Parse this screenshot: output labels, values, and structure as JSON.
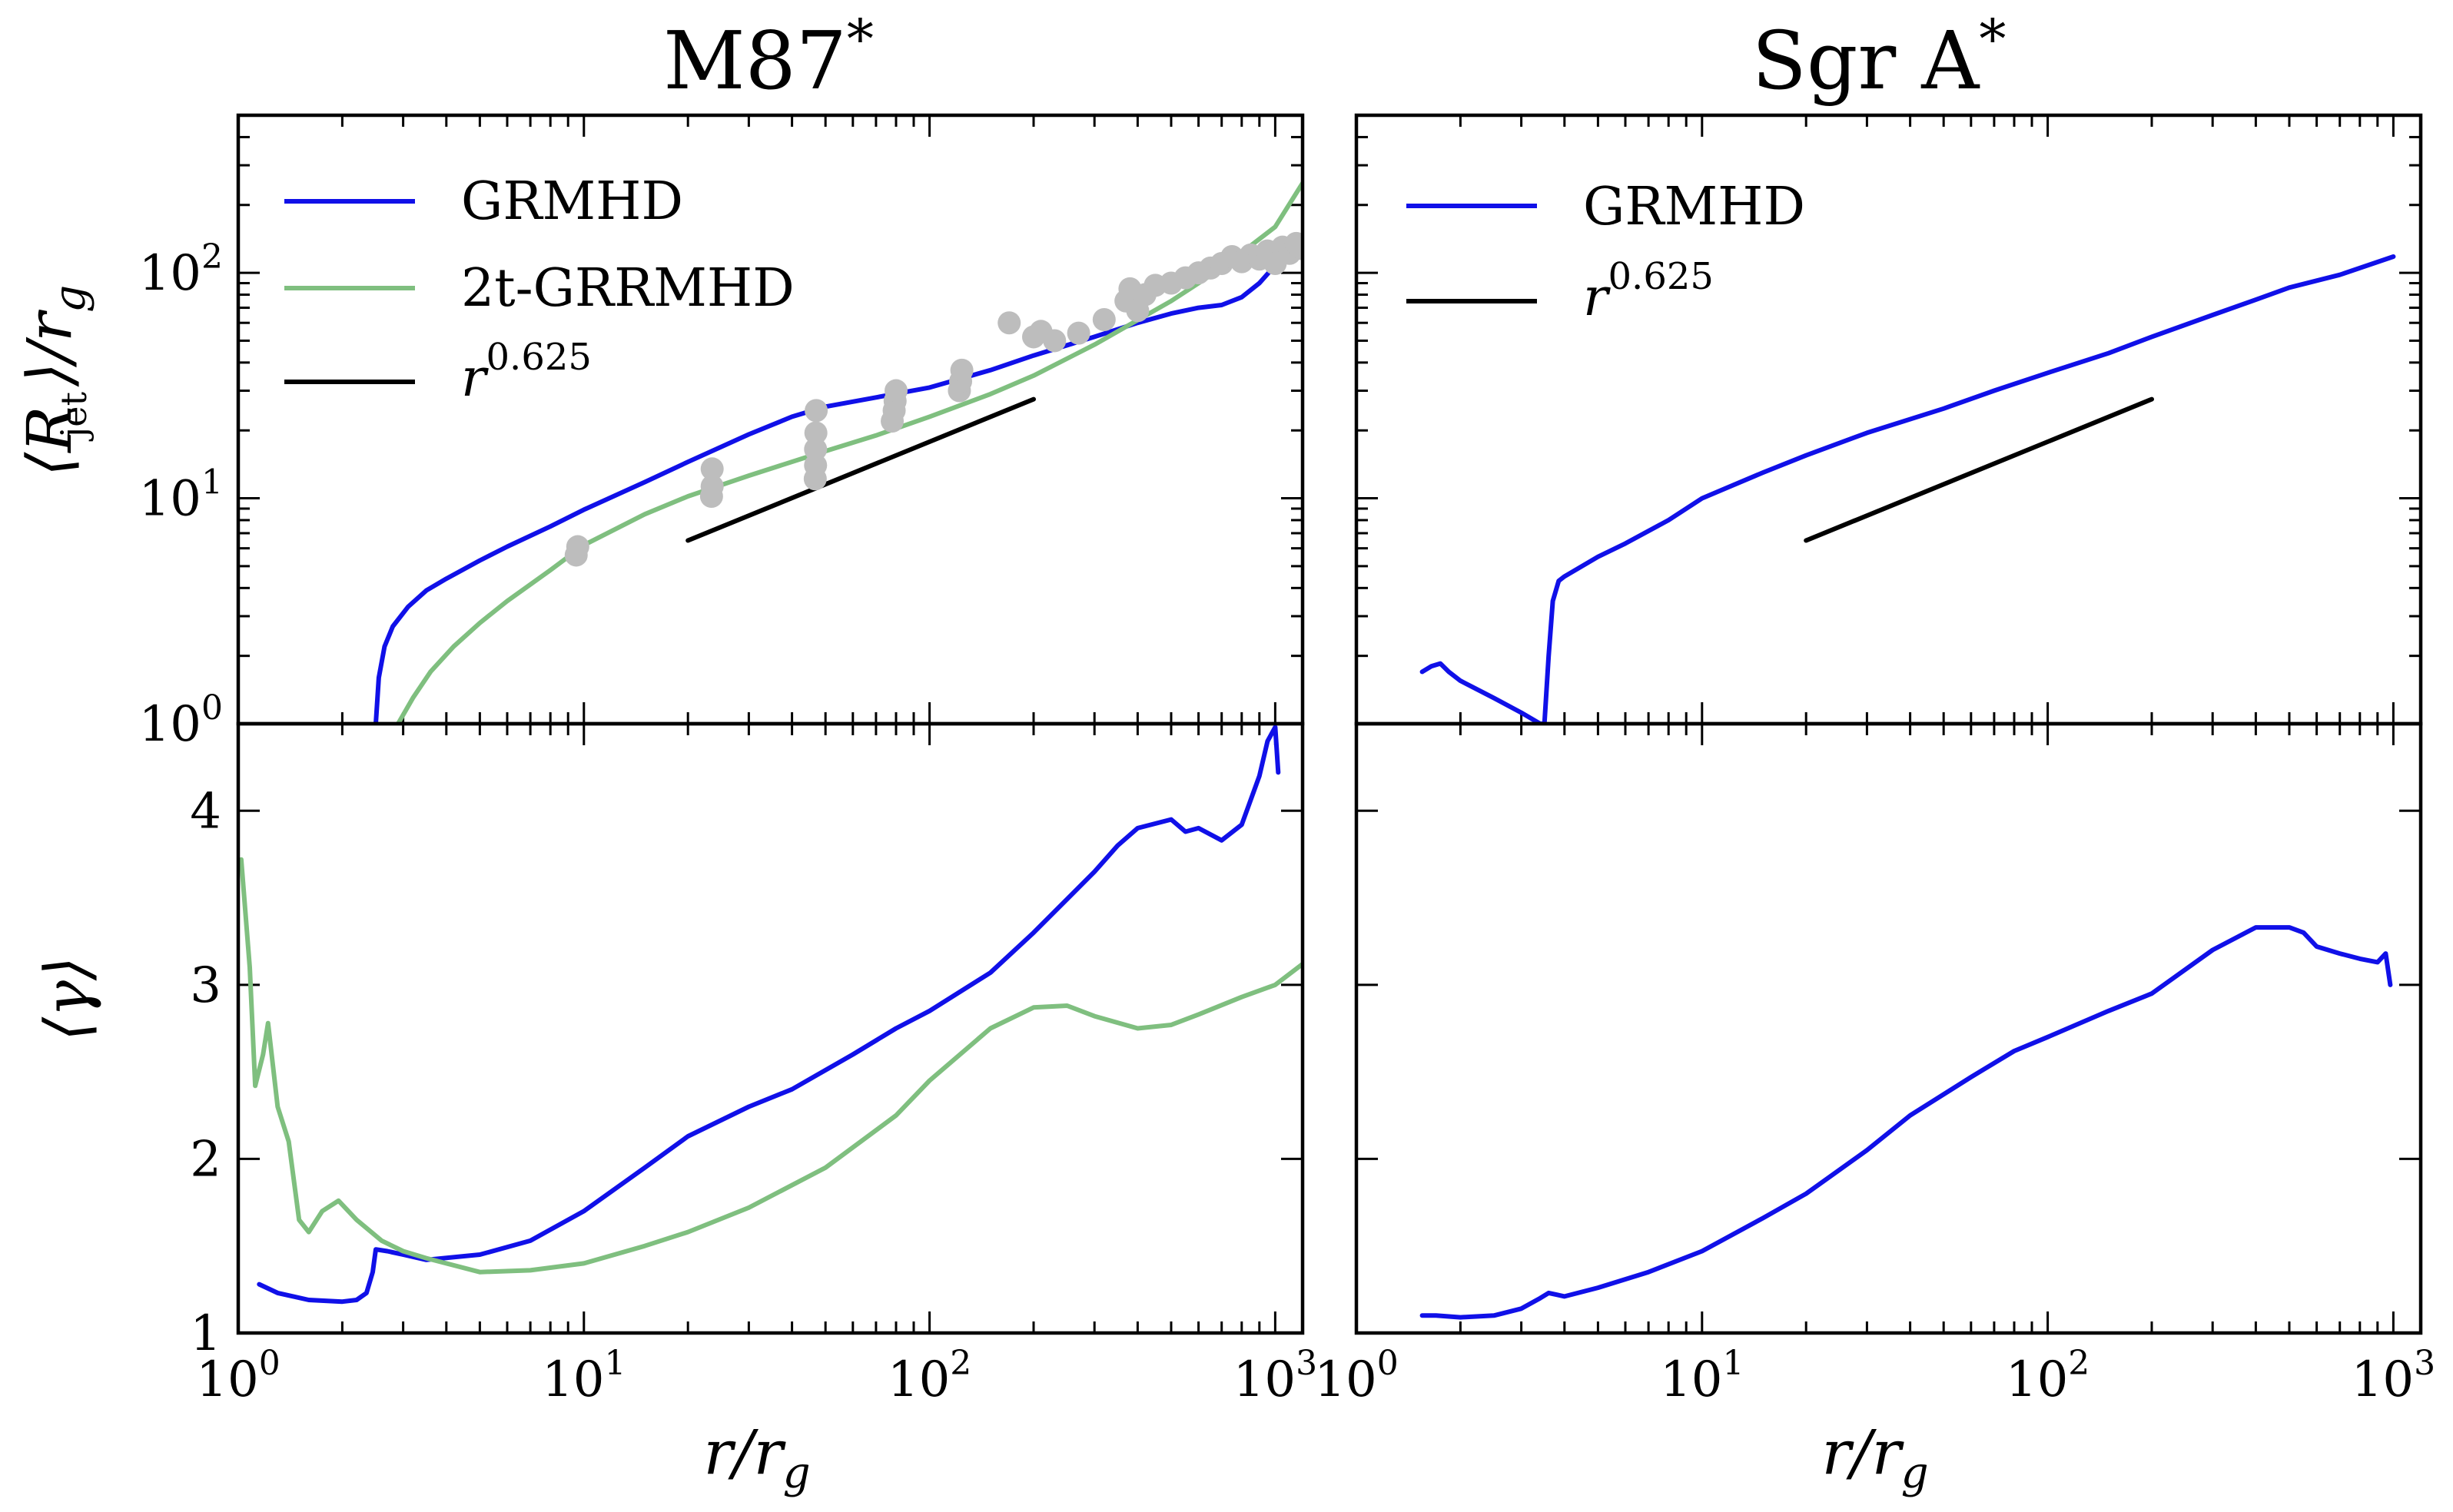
{
  "panels": {
    "left_title": "M87",
    "right_title": "Sgr A",
    "title_sup": "*"
  },
  "axes": {
    "xlabel": "r/r",
    "xlabel_sub": "g",
    "ylabel_top": "⟨R    ⟩/r",
    "ylabel_top_sub1": "jet",
    "ylabel_top_sub2": "g",
    "ylabel_bottom": "⟨γ⟩"
  },
  "legend": {
    "grmhd": "GRMHD",
    "twotemp": "2t-GRRMHD",
    "powerlaw_base": "r",
    "powerlaw_exp": "0.625"
  },
  "colors": {
    "grmhd": "#1010e8",
    "twotemp": "#7fbf7f",
    "powerlaw": "#000000",
    "observations": "#bdbdbd"
  },
  "ticks": {
    "x": [
      {
        "base": "10",
        "exp": "0"
      },
      {
        "base": "10",
        "exp": "1"
      },
      {
        "base": "10",
        "exp": "2"
      },
      {
        "base": "10",
        "exp": "3"
      }
    ],
    "y_top": [
      {
        "base": "10",
        "exp": "0"
      },
      {
        "base": "10",
        "exp": "1"
      },
      {
        "base": "10",
        "exp": "2"
      }
    ],
    "y_bottom": [
      "1",
      "2",
      "3",
      "4"
    ]
  },
  "chart_data": [
    {
      "type": "line",
      "panel": "M87* jet radius",
      "title": "M87",
      "xlabel": "r/r_g",
      "ylabel": "⟨R_jet⟩/r_g",
      "xscale": "log",
      "yscale": "log",
      "xlim": [
        1,
        1200
      ],
      "ylim": [
        1,
        500
      ],
      "legend": "top-left",
      "series": [
        {
          "name": "GRMHD",
          "color": "#1010e8",
          "points": [
            [
              2.5,
              1.0
            ],
            [
              2.55,
              1.6
            ],
            [
              2.65,
              2.2
            ],
            [
              2.8,
              2.7
            ],
            [
              3.1,
              3.3
            ],
            [
              3.5,
              3.9
            ],
            [
              4,
              4.4
            ],
            [
              5,
              5.3
            ],
            [
              6,
              6.1
            ],
            [
              8,
              7.5
            ],
            [
              10,
              8.9
            ],
            [
              15,
              11.8
            ],
            [
              20,
              14.5
            ],
            [
              30,
              19.2
            ],
            [
              40,
              23
            ],
            [
              50,
              25.5
            ],
            [
              70,
              28
            ],
            [
              100,
              31
            ],
            [
              150,
              37
            ],
            [
              200,
              43
            ],
            [
              300,
              52
            ],
            [
              400,
              60
            ],
            [
              500,
              66
            ],
            [
              600,
              70
            ],
            [
              700,
              72
            ],
            [
              800,
              78
            ],
            [
              900,
              90
            ],
            [
              1000,
              108
            ]
          ]
        },
        {
          "name": "2t-GRRMHD",
          "color": "#7fbf7f",
          "points": [
            [
              2.9,
              1.0
            ],
            [
              3.2,
              1.3
            ],
            [
              3.6,
              1.7
            ],
            [
              4.2,
              2.2
            ],
            [
              5,
              2.8
            ],
            [
              6,
              3.5
            ],
            [
              8,
              4.8
            ],
            [
              10,
              6.2
            ],
            [
              15,
              8.5
            ],
            [
              20,
              10.2
            ],
            [
              30,
              12.6
            ],
            [
              50,
              16.2
            ],
            [
              70,
              19
            ],
            [
              100,
              23
            ],
            [
              150,
              29
            ],
            [
              200,
              35
            ],
            [
              300,
              48
            ],
            [
              500,
              75
            ],
            [
              700,
              105
            ],
            [
              1000,
              160
            ],
            [
              1200,
              250
            ]
          ]
        },
        {
          "name": "r^0.625",
          "color": "#000000",
          "points": [
            [
              20,
              6.5
            ],
            [
              200,
              27.5
            ]
          ]
        },
        {
          "name": "observations",
          "color": "#bdbdbd",
          "marker": "circle",
          "points": [
            [
              9.5,
              5.6
            ],
            [
              9.6,
              6.1
            ],
            [
              23.4,
              10.2
            ],
            [
              23.5,
              11.3
            ],
            [
              23.5,
              13.5
            ],
            [
              46.7,
              12.2
            ],
            [
              46.8,
              14
            ],
            [
              46.8,
              16.5
            ],
            [
              46.9,
              19.5
            ],
            [
              47,
              24.5
            ],
            [
              78,
              22
            ],
            [
              79,
              24.5
            ],
            [
              79.5,
              27
            ],
            [
              80,
              30
            ],
            [
              122,
              30
            ],
            [
              123,
              33
            ],
            [
              124,
              37
            ],
            [
              170,
              60
            ],
            [
              200,
              52
            ],
            [
              210,
              55
            ],
            [
              230,
              50
            ],
            [
              270,
              54
            ],
            [
              320,
              62
            ],
            [
              370,
              75
            ],
            [
              380,
              85
            ],
            [
              400,
              68
            ],
            [
              420,
              80
            ],
            [
              450,
              88
            ],
            [
              500,
              90
            ],
            [
              550,
              95
            ],
            [
              600,
              100
            ],
            [
              650,
              105
            ],
            [
              700,
              110
            ],
            [
              750,
              118
            ],
            [
              800,
              112
            ],
            [
              850,
              120
            ],
            [
              900,
              115
            ],
            [
              950,
              125
            ],
            [
              1000,
              110
            ],
            [
              1050,
              130
            ],
            [
              1100,
              122
            ],
            [
              1150,
              135
            ],
            [
              1200,
              128
            ]
          ]
        }
      ]
    },
    {
      "type": "line",
      "panel": "Sgr A* jet radius",
      "title": "Sgr A",
      "xlabel": "r/r_g",
      "ylabel": "⟨R_jet⟩/r_g",
      "xscale": "log",
      "yscale": "log",
      "xlim": [
        1,
        1200
      ],
      "ylim": [
        1,
        500
      ],
      "legend": "top-left",
      "series": [
        {
          "name": "GRMHD",
          "color": "#1010e8",
          "points": [
            [
              1.55,
              1.7
            ],
            [
              1.65,
              1.8
            ],
            [
              1.75,
              1.85
            ],
            [
              1.85,
              1.7
            ],
            [
              2.0,
              1.55
            ],
            [
              2.5,
              1.3
            ],
            [
              3.0,
              1.12
            ],
            [
              3.4,
              1.0
            ],
            [
              3.5,
              1.0
            ],
            [
              3.6,
              2.0
            ],
            [
              3.7,
              3.5
            ],
            [
              3.85,
              4.3
            ],
            [
              4,
              4.5
            ],
            [
              5,
              5.5
            ],
            [
              6,
              6.3
            ],
            [
              8,
              8
            ],
            [
              10,
              10
            ],
            [
              15,
              13
            ],
            [
              20,
              15.5
            ],
            [
              30,
              19.5
            ],
            [
              50,
              25
            ],
            [
              70,
              30
            ],
            [
              100,
              36
            ],
            [
              150,
              44
            ],
            [
              200,
              52
            ],
            [
              300,
              65
            ],
            [
              400,
              76
            ],
            [
              500,
              86
            ],
            [
              700,
              98
            ],
            [
              1000,
              118
            ]
          ]
        },
        {
          "name": "r^0.625",
          "color": "#000000",
          "points": [
            [
              20,
              6.5
            ],
            [
              200,
              27.5
            ]
          ]
        }
      ]
    },
    {
      "type": "line",
      "panel": "M87* Lorentz factor",
      "xlabel": "r/r_g",
      "ylabel": "⟨γ⟩",
      "xscale": "log",
      "yscale": "linear",
      "xlim": [
        1,
        1200
      ],
      "ylim": [
        1,
        4.5
      ],
      "series": [
        {
          "name": "GRMHD",
          "color": "#1010e8",
          "points": [
            [
              1.15,
              1.28
            ],
            [
              1.3,
              1.23
            ],
            [
              1.6,
              1.19
            ],
            [
              2,
              1.18
            ],
            [
              2.2,
              1.19
            ],
            [
              2.35,
              1.23
            ],
            [
              2.45,
              1.35
            ],
            [
              2.5,
              1.48
            ],
            [
              2.7,
              1.47
            ],
            [
              3,
              1.45
            ],
            [
              3.5,
              1.42
            ],
            [
              5,
              1.45
            ],
            [
              7,
              1.53
            ],
            [
              10,
              1.7
            ],
            [
              15,
              1.95
            ],
            [
              20,
              2.13
            ],
            [
              30,
              2.3
            ],
            [
              40,
              2.4
            ],
            [
              60,
              2.6
            ],
            [
              80,
              2.75
            ],
            [
              100,
              2.85
            ],
            [
              150,
              3.07
            ],
            [
              200,
              3.3
            ],
            [
              300,
              3.65
            ],
            [
              350,
              3.8
            ],
            [
              400,
              3.9
            ],
            [
              500,
              3.95
            ],
            [
              550,
              3.88
            ],
            [
              600,
              3.9
            ],
            [
              700,
              3.83
            ],
            [
              800,
              3.92
            ],
            [
              900,
              4.2
            ],
            [
              950,
              4.4
            ],
            [
              1000,
              4.48
            ],
            [
              1020,
              4.22
            ]
          ]
        },
        {
          "name": "2t-GRRMHD",
          "color": "#7fbf7f",
          "points": [
            [
              1.02,
              3.72
            ],
            [
              1.08,
              3.1
            ],
            [
              1.12,
              2.42
            ],
            [
              1.18,
              2.6
            ],
            [
              1.22,
              2.78
            ],
            [
              1.3,
              2.3
            ],
            [
              1.4,
              2.1
            ],
            [
              1.5,
              1.65
            ],
            [
              1.6,
              1.58
            ],
            [
              1.75,
              1.7
            ],
            [
              1.95,
              1.76
            ],
            [
              2.2,
              1.65
            ],
            [
              2.6,
              1.53
            ],
            [
              3,
              1.47
            ],
            [
              3.5,
              1.43
            ],
            [
              5,
              1.35
            ],
            [
              7,
              1.36
            ],
            [
              10,
              1.4
            ],
            [
              15,
              1.5
            ],
            [
              20,
              1.58
            ],
            [
              30,
              1.72
            ],
            [
              50,
              1.95
            ],
            [
              80,
              2.25
            ],
            [
              100,
              2.45
            ],
            [
              150,
              2.75
            ],
            [
              200,
              2.87
            ],
            [
              250,
              2.88
            ],
            [
              300,
              2.82
            ],
            [
              400,
              2.75
            ],
            [
              500,
              2.77
            ],
            [
              600,
              2.83
            ],
            [
              800,
              2.93
            ],
            [
              1000,
              3.0
            ],
            [
              1200,
              3.12
            ]
          ]
        }
      ]
    },
    {
      "type": "line",
      "panel": "Sgr A* Lorentz factor",
      "xlabel": "r/r_g",
      "ylabel": "⟨γ⟩",
      "xscale": "log",
      "yscale": "linear",
      "xlim": [
        1,
        1200
      ],
      "ylim": [
        1,
        4.5
      ],
      "series": [
        {
          "name": "GRMHD",
          "color": "#1010e8",
          "points": [
            [
              1.55,
              1.1
            ],
            [
              1.7,
              1.1
            ],
            [
              2,
              1.09
            ],
            [
              2.5,
              1.1
            ],
            [
              3,
              1.14
            ],
            [
              3.4,
              1.2
            ],
            [
              3.6,
              1.23
            ],
            [
              3.8,
              1.22
            ],
            [
              4,
              1.21
            ],
            [
              5,
              1.26
            ],
            [
              7,
              1.35
            ],
            [
              10,
              1.47
            ],
            [
              15,
              1.66
            ],
            [
              20,
              1.8
            ],
            [
              30,
              2.05
            ],
            [
              40,
              2.25
            ],
            [
              60,
              2.47
            ],
            [
              80,
              2.62
            ],
            [
              100,
              2.7
            ],
            [
              150,
              2.85
            ],
            [
              200,
              2.95
            ],
            [
              300,
              3.2
            ],
            [
              400,
              3.33
            ],
            [
              500,
              3.33
            ],
            [
              550,
              3.3
            ],
            [
              600,
              3.22
            ],
            [
              700,
              3.18
            ],
            [
              800,
              3.15
            ],
            [
              900,
              3.13
            ],
            [
              950,
              3.18
            ],
            [
              980,
              3.0
            ]
          ]
        }
      ]
    }
  ]
}
